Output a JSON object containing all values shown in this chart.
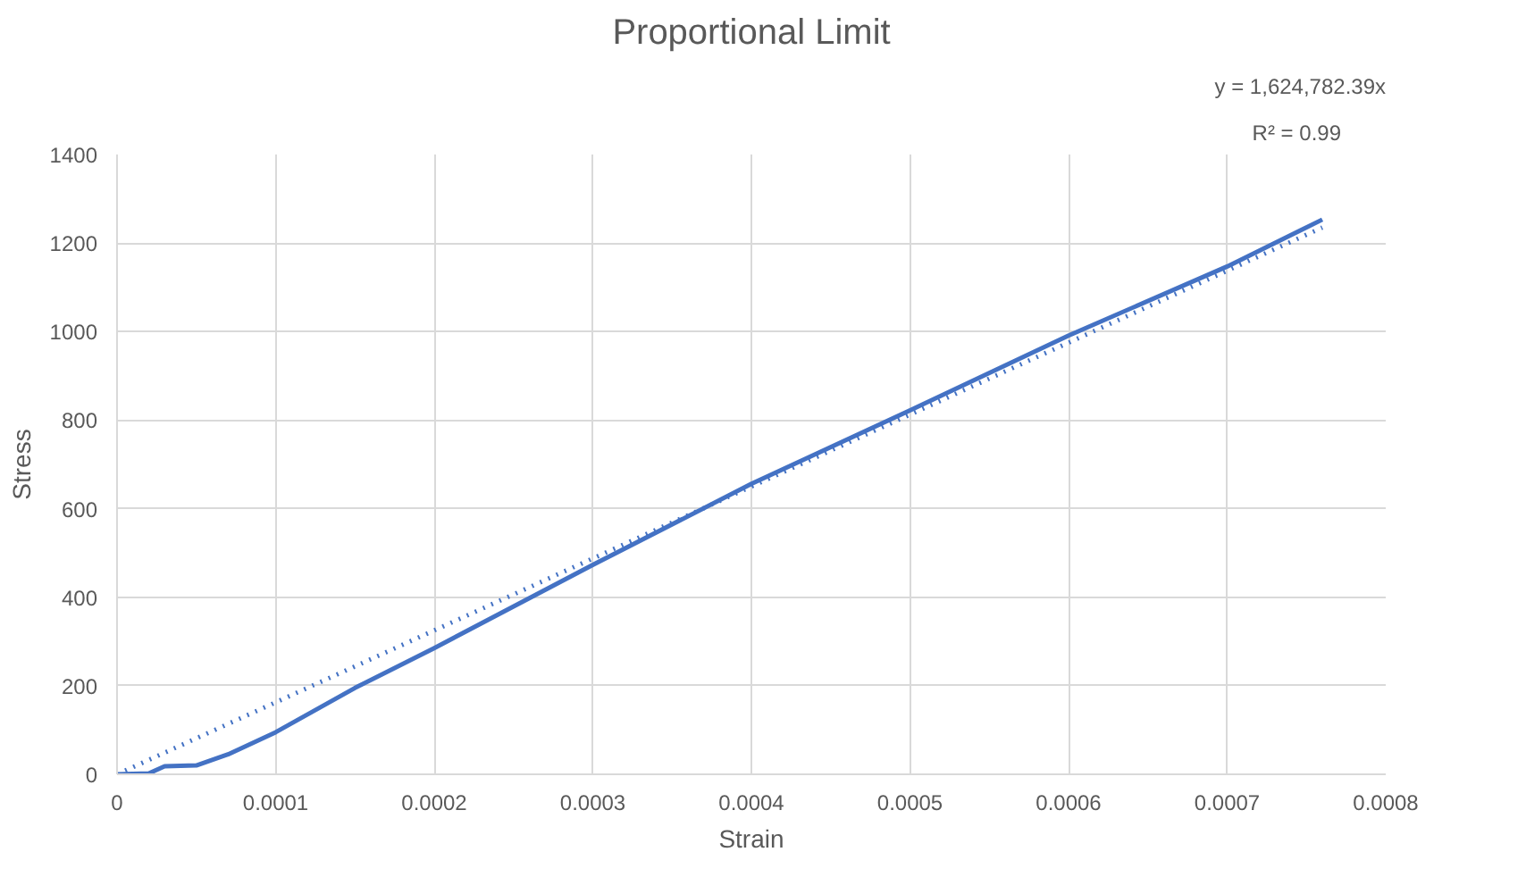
{
  "chart_data": {
    "type": "line",
    "title": "Proportional Limit",
    "xlabel": "Strain",
    "ylabel": "Stress",
    "xlim": [
      0,
      0.0008
    ],
    "xticks": [
      0,
      0.0001,
      0.0002,
      0.0003,
      0.0004,
      0.0005,
      0.0006,
      0.0007,
      0.0008
    ],
    "ylim": [
      0,
      1400
    ],
    "yticks": [
      0,
      200,
      400,
      600,
      800,
      1000,
      1200,
      1400
    ],
    "grid": true,
    "marker": "none",
    "annotations": [
      "y = 1,624,782.39x",
      "R² = 0.99"
    ],
    "series": [
      {
        "color": "#4472c4",
        "line_style": "solid",
        "x": [
          0,
          2e-05,
          3e-05,
          5e-05,
          7e-05,
          0.0001,
          0.00015,
          0.0002,
          0.0003,
          0.0004,
          0.0005,
          0.0006,
          0.0007,
          0.00076
        ],
        "values": [
          0,
          2,
          18,
          20,
          45,
          95,
          195,
          285,
          473,
          656,
          822,
          991,
          1147,
          1253
        ]
      },
      {
        "type": "line",
        "color": "#4472c4",
        "line_style": "dotted",
        "x": [
          0,
          0.00076
        ],
        "values": [
          0,
          1235
        ]
      }
    ]
  }
}
